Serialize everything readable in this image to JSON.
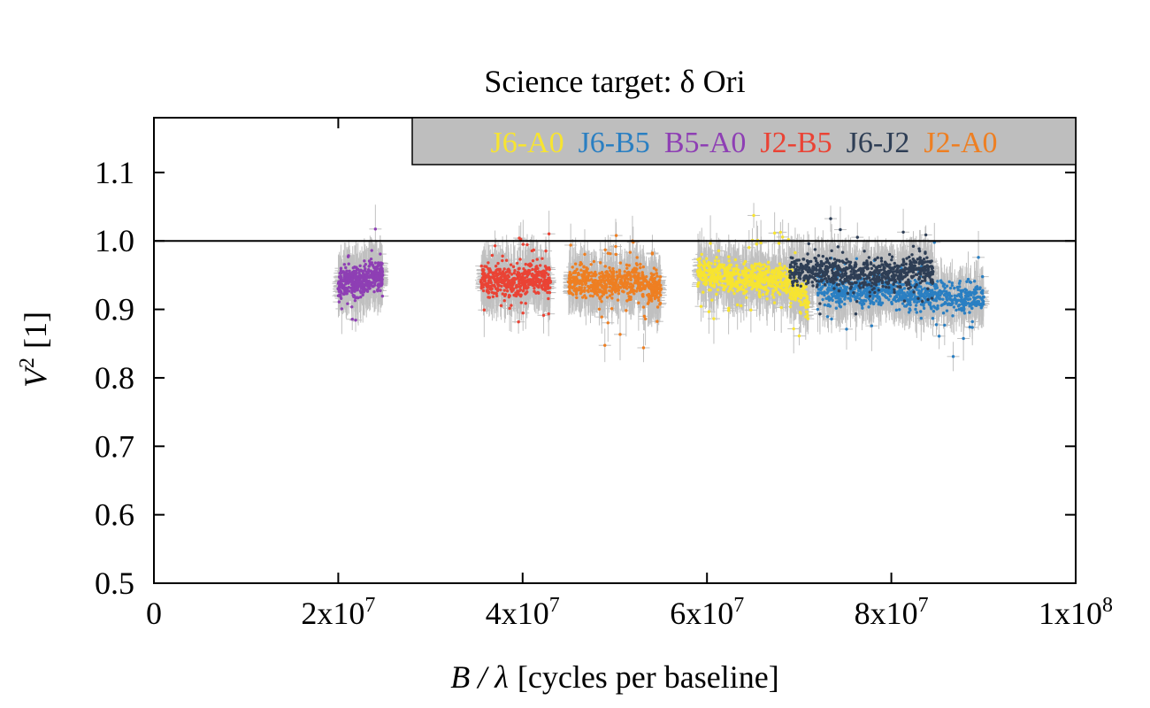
{
  "chart_data": {
    "type": "scatter",
    "title": "Science target: δ Ori",
    "xlabel": {
      "var": "B / λ",
      "rest": "[cycles per baseline]"
    },
    "ylabel": {
      "var": "V",
      "sup": "2",
      "rest": "[1]"
    },
    "xlim": [
      0,
      100000000
    ],
    "ylim": [
      0.5,
      1.18
    ],
    "x_ticks": [
      {
        "value": 0,
        "mant": "0",
        "exp": ""
      },
      {
        "value": 20000000,
        "mant": "2x10",
        "exp": "7"
      },
      {
        "value": 40000000,
        "mant": "4x10",
        "exp": "7"
      },
      {
        "value": 60000000,
        "mant": "6x10",
        "exp": "7"
      },
      {
        "value": 80000000,
        "mant": "8x10",
        "exp": "7"
      },
      {
        "value": 100000000,
        "mant": "1x10",
        "exp": "8"
      }
    ],
    "y_ticks": [
      {
        "value": 0.5,
        "label": "0.5"
      },
      {
        "value": 0.6,
        "label": "0.6"
      },
      {
        "value": 0.7,
        "label": "0.7"
      },
      {
        "value": 0.8,
        "label": "0.8"
      },
      {
        "value": 0.9,
        "label": "0.9"
      },
      {
        "value": 1.0,
        "label": "1.0"
      },
      {
        "value": 1.1,
        "label": "1.1"
      }
    ],
    "reference_line": 1.0,
    "grid": false,
    "legend_position": "top-right",
    "errorbar_color": "#c0c0c0",
    "legend_bg": "#bebebe",
    "series": [
      {
        "name": "J6-A0",
        "color": "#f7e431",
        "x": [
          59000000,
          60500000,
          62000000,
          63500000,
          65000000,
          66500000,
          68000000,
          69500000,
          71000000
        ],
        "y": [
          0.955,
          0.948,
          0.952,
          0.944,
          0.947,
          0.943,
          0.946,
          0.93,
          0.91
        ]
      },
      {
        "name": "J6-B5",
        "color": "#2a7fc2",
        "x": [
          72000000,
          74000000,
          76000000,
          78000000,
          80000000,
          82000000,
          84000000,
          86000000,
          88000000,
          90000000
        ],
        "y": [
          0.935,
          0.925,
          0.93,
          0.925,
          0.93,
          0.92,
          0.922,
          0.918,
          0.915,
          0.918
        ]
      },
      {
        "name": "B5-A0",
        "color": "#8e3fb4",
        "x": [
          20000000,
          21000000,
          22000000,
          23000000,
          24000000,
          24800000
        ],
        "y": [
          0.93,
          0.945,
          0.94,
          0.945,
          0.95,
          0.95
        ]
      },
      {
        "name": "J2-B5",
        "color": "#ea4335",
        "x": [
          35500000,
          37000000,
          38500000,
          40000000,
          41500000,
          43000000
        ],
        "y": [
          0.94,
          0.943,
          0.942,
          0.94,
          0.95,
          0.94
        ]
      },
      {
        "name": "J6-J2",
        "color": "#2e3e55",
        "x": [
          69000000,
          71000000,
          73000000,
          75000000,
          77000000,
          79000000,
          81000000,
          83000000,
          84500000
        ],
        "y": [
          0.955,
          0.955,
          0.955,
          0.952,
          0.95,
          0.95,
          0.953,
          0.96,
          0.955
        ]
      },
      {
        "name": "J2-A0",
        "color": "#ee7f22",
        "x": [
          45000000,
          46500000,
          48000000,
          49500000,
          51000000,
          52500000,
          54000000,
          55000000
        ],
        "y": [
          0.94,
          0.942,
          0.938,
          0.94,
          0.938,
          0.94,
          0.935,
          0.93
        ]
      }
    ]
  }
}
